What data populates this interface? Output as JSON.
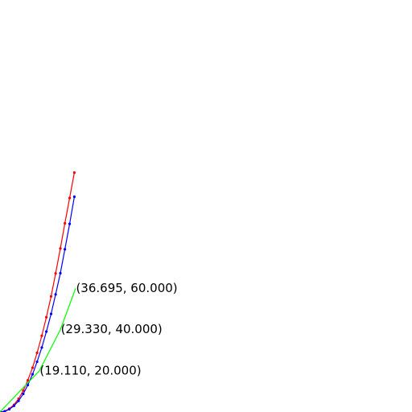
{
  "chart_data": {
    "type": "line",
    "title": "",
    "xlabel": "",
    "ylabel": "",
    "grid": false,
    "axes_visible": false,
    "xlim": [
      0,
      200
    ],
    "ylim": [
      0,
      200
    ],
    "series": [
      {
        "color": "#ff0000",
        "markers": true,
        "points": [
          {
            "x": 0.0,
            "y": 0.0
          },
          {
            "x": 2.3,
            "y": 0.4
          },
          {
            "x": 4.5,
            "y": 1.6
          },
          {
            "x": 6.8,
            "y": 3.5
          },
          {
            "x": 9.0,
            "y": 6.4
          },
          {
            "x": 11.3,
            "y": 10.4
          },
          {
            "x": 13.5,
            "y": 15.4
          },
          {
            "x": 15.8,
            "y": 21.5
          },
          {
            "x": 18.0,
            "y": 28.7
          },
          {
            "x": 20.3,
            "y": 37.0
          },
          {
            "x": 22.5,
            "y": 46.0
          },
          {
            "x": 24.8,
            "y": 56.1
          },
          {
            "x": 27.0,
            "y": 67.3
          },
          {
            "x": 29.3,
            "y": 79.4
          },
          {
            "x": 31.5,
            "y": 91.6
          },
          {
            "x": 33.8,
            "y": 103.9
          },
          {
            "x": 36.1,
            "y": 116.2
          }
        ]
      },
      {
        "color": "#0000ff",
        "markers": true,
        "points": [
          {
            "x": 0.0,
            "y": 0.0
          },
          {
            "x": 2.3,
            "y": 0.3
          },
          {
            "x": 4.5,
            "y": 1.3
          },
          {
            "x": 6.8,
            "y": 3.0
          },
          {
            "x": 9.0,
            "y": 5.4
          },
          {
            "x": 11.3,
            "y": 8.8
          },
          {
            "x": 13.5,
            "y": 13.1
          },
          {
            "x": 15.8,
            "y": 18.3
          },
          {
            "x": 18.0,
            "y": 24.4
          },
          {
            "x": 20.3,
            "y": 31.3
          },
          {
            "x": 22.5,
            "y": 39.0
          },
          {
            "x": 24.8,
            "y": 47.6
          },
          {
            "x": 27.0,
            "y": 57.1
          },
          {
            "x": 29.3,
            "y": 67.4
          },
          {
            "x": 31.5,
            "y": 79.0
          },
          {
            "x": 33.8,
            "y": 91.3
          },
          {
            "x": 36.1,
            "y": 104.5
          }
        ]
      },
      {
        "color": "#00ff00",
        "markers": false,
        "points": [
          {
            "x": 0.0,
            "y": 0.0
          },
          {
            "x": 19.11,
            "y": 20.0
          },
          {
            "x": 29.33,
            "y": 40.0
          },
          {
            "x": 36.695,
            "y": 60.0
          }
        ]
      }
    ],
    "annotations": [
      {
        "text": "(19.110, 20.000)",
        "x": 19.11,
        "y": 20.0
      },
      {
        "text": "(29.330, 40.000)",
        "x": 29.33,
        "y": 40.0
      },
      {
        "text": "(36.695, 60.000)",
        "x": 36.695,
        "y": 60.0
      }
    ]
  }
}
